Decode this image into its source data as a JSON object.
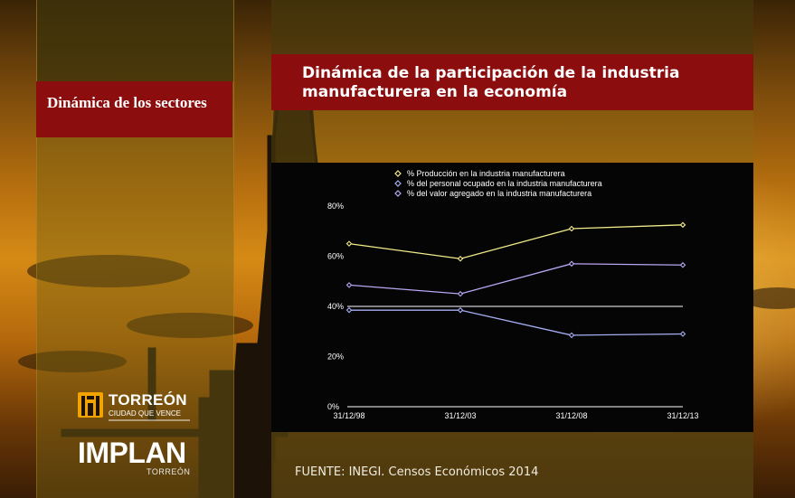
{
  "sidebar": {
    "title": "Dinámica de los sectores"
  },
  "main": {
    "title": "Dinámica de la participación de la industria manufacturera en la economía"
  },
  "source": "FUENTE: INEGI. Censos Económicos 2014",
  "logos": {
    "city_name": "TORREÓN",
    "city_tagline": "CIUDAD QUE VENCE",
    "institute_name": "IMPLAN",
    "institute_sub": "TORREÓN"
  },
  "colors": {
    "title_bar": "#8b0d0d",
    "chart_background": "#050505",
    "series_produccion": "#f2ec8a",
    "series_personal": "#a6aef2",
    "series_valor": "#b9a6f2",
    "logo_accent": "#f2a300"
  },
  "chart_data": {
    "type": "line",
    "title": "",
    "xlabel": "",
    "ylabel": "",
    "categories": [
      "31/12/98",
      "31/12/03",
      "31/12/08",
      "31/12/13"
    ],
    "ylim": [
      0,
      80
    ],
    "yticks": [
      "0%",
      "20%",
      "40%",
      "60%",
      "80%"
    ],
    "ytick_values": [
      0,
      20,
      40,
      60,
      80
    ],
    "gridlines": [
      40
    ],
    "legend_position": "top",
    "series": [
      {
        "name": "% Producción en la industria manufacturera",
        "values": [
          65,
          59,
          71,
          72.5
        ]
      },
      {
        "name": "% del personal ocupado en la industria manufacturera",
        "values": [
          38.5,
          38.5,
          28.5,
          29
        ]
      },
      {
        "name": "% del valor agregado en la industria manufacturera",
        "values": [
          48.5,
          45,
          57,
          56.5
        ]
      }
    ]
  }
}
